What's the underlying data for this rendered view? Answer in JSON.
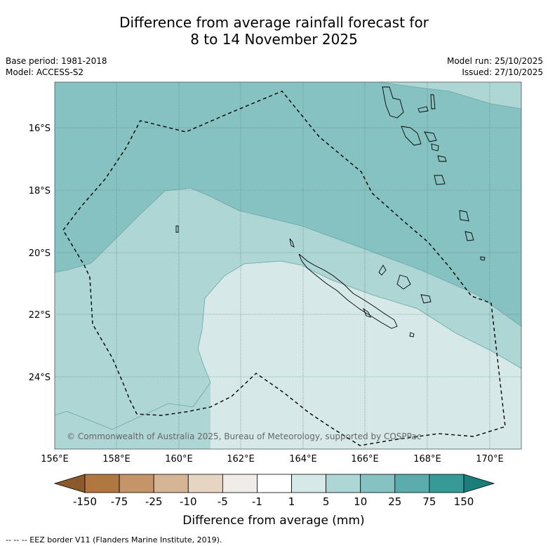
{
  "title_line1": "Difference from average rainfall forecast for",
  "title_line2": "8 to 14 November 2025",
  "base_period": "Base period: 1981-2018",
  "model": "Model: ACCESS-S2",
  "model_run": "Model run: 25/10/2025",
  "issued": "Issued: 27/10/2025",
  "copyright": "© Commonwealth of Australia 2025, Bureau of Meteorology, supported by COSPPac",
  "lat_labels": [
    "16°S",
    "18°S",
    "20°S",
    "22°S",
    "24°S"
  ],
  "lon_labels": [
    "156°E",
    "158°E",
    "160°E",
    "162°E",
    "164°E",
    "166°E",
    "168°E",
    "170°E"
  ],
  "colorbar": {
    "title": "Difference from average (mm)",
    "ticks": [
      "-150",
      "-75",
      "-25",
      "-10",
      "-5",
      "-1",
      "1",
      "5",
      "10",
      "25",
      "75",
      "150"
    ],
    "colors": [
      "#8c5a2a",
      "#b07840",
      "#c59468",
      "#d6b496",
      "#e8d4c2",
      "#f0ece8",
      "#ffffff",
      "#d6e9e8",
      "#add6d5",
      "#85c2c1",
      "#5aadac",
      "#369b97",
      "#1b7e7a"
    ]
  },
  "footer": "--  --  -- EEZ border V11 (Flanders Marine Institute, 2019)."
}
